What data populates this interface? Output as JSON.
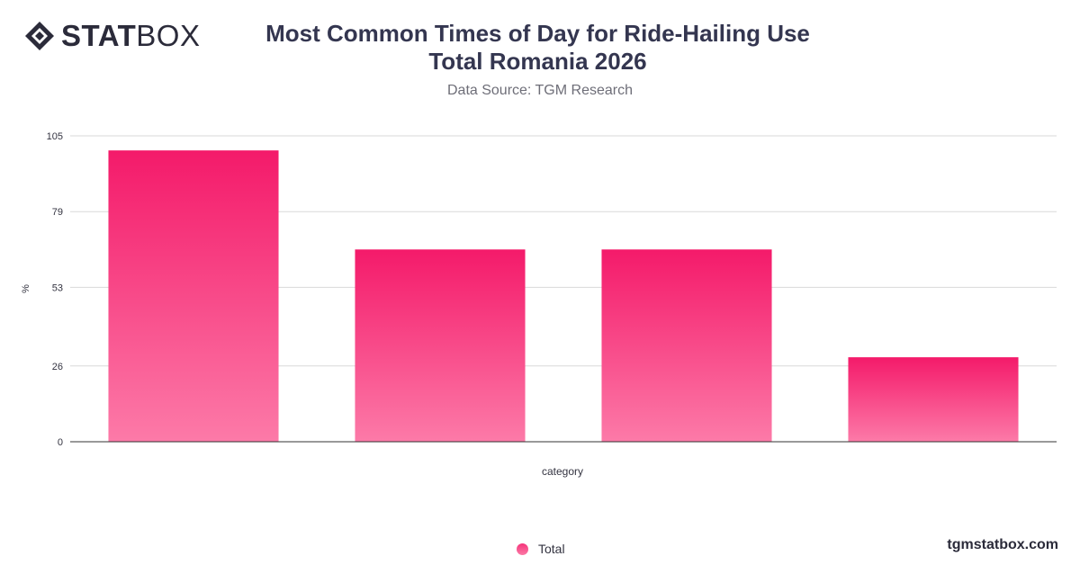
{
  "brand": {
    "logo_stat": "STAT",
    "logo_box": "BOX",
    "footer": "tgmstatbox.com"
  },
  "header": {
    "title": "Most Common Times of Day for Ride-Hailing Use Total Romania 2026",
    "subtitle": "Data Source: TGM Research"
  },
  "legend": {
    "label": "Total"
  },
  "colors": {
    "bar_top": "#f41a6a",
    "bar_bottom": "#fc7aa8",
    "grid": "#d9d9d9",
    "axis": "#333333"
  },
  "chart_data": {
    "type": "bar",
    "title": "Most Common Times of Day for Ride-Hailing Use Total Romania 2026",
    "subtitle": "Data Source: TGM Research",
    "xlabel": "category",
    "ylabel": "%",
    "ylim": [
      0,
      105
    ],
    "yticks": [
      0,
      26,
      53,
      79,
      105
    ],
    "grid": true,
    "legend_position": "bottom",
    "categories": [
      "",
      "",
      "",
      ""
    ],
    "series": [
      {
        "name": "Total",
        "values": [
          100,
          66,
          66,
          29
        ]
      }
    ]
  }
}
